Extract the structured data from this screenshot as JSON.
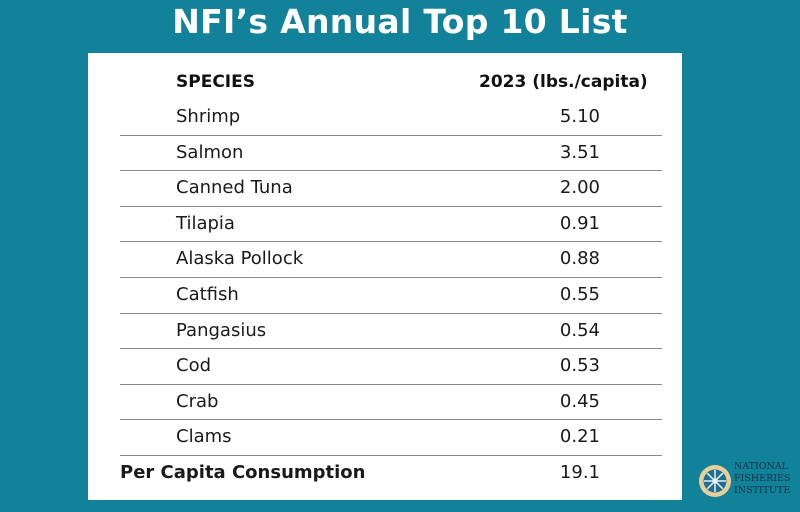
{
  "title": "NFI’s Annual Top 10 List",
  "table": {
    "headers": [
      "SPECIES",
      "2023 (lbs./capita)"
    ],
    "rows": [
      {
        "species": "Shrimp",
        "value": "5.10"
      },
      {
        "species": "Salmon",
        "value": "3.51"
      },
      {
        "species": "Canned Tuna",
        "value": "2.00"
      },
      {
        "species": "Tilapia",
        "value": "0.91"
      },
      {
        "species": "Alaska Pollock",
        "value": "0.88"
      },
      {
        "species": "Catfish",
        "value": "0.55"
      },
      {
        "species": "Pangasius",
        "value": "0.54"
      },
      {
        "species": "Cod",
        "value": "0.53"
      },
      {
        "species": "Crab",
        "value": "0.45"
      },
      {
        "species": "Clams",
        "value": "0.21"
      }
    ],
    "total": {
      "label": "Per Capita Consumption",
      "value": "19.1"
    }
  },
  "logo": {
    "lines": [
      "NATIONAL",
      "FISHERIES",
      "INSTITUTE"
    ],
    "icon": "ships-wheel-icon"
  },
  "colors": {
    "background": "#12819a",
    "panel": "#ffffff"
  }
}
